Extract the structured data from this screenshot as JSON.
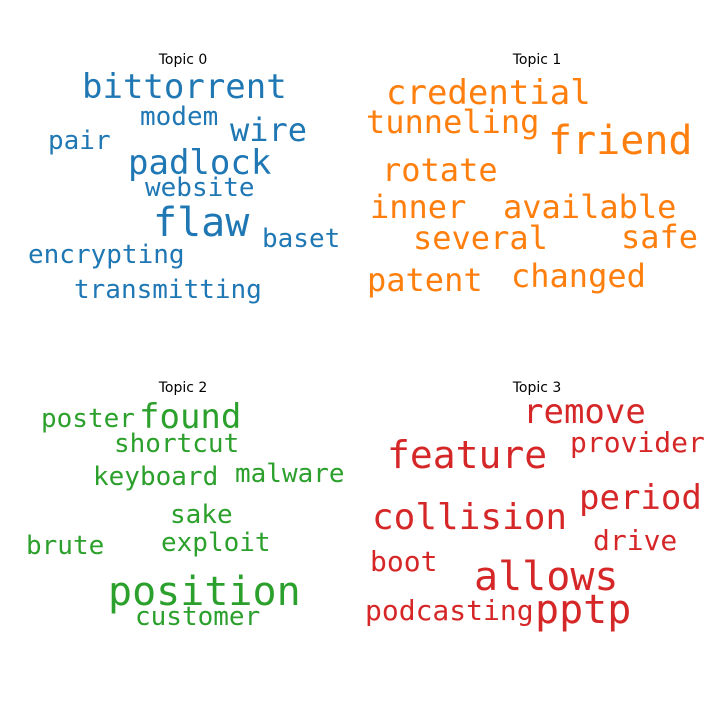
{
  "chart_data": {
    "type": "wordcloud",
    "panels": [
      {
        "title": "Topic 0",
        "color": "#1f77b4",
        "words": [
          "bittorrent",
          "modem",
          "wire",
          "pair",
          "padlock",
          "website",
          "flaw",
          "baset",
          "encrypting",
          "transmitting"
        ]
      },
      {
        "title": "Topic 1",
        "color": "#ff7f0e",
        "words": [
          "credential",
          "tunneling",
          "friend",
          "rotate",
          "inner",
          "available",
          "several",
          "safe",
          "patent",
          "changed"
        ]
      },
      {
        "title": "Topic 2",
        "color": "#2ca02c",
        "words": [
          "poster",
          "found",
          "shortcut",
          "keyboard",
          "malware",
          "sake",
          "exploit",
          "brute",
          "position",
          "customer"
        ]
      },
      {
        "title": "Topic 3",
        "color": "#d62728",
        "words": [
          "remove",
          "feature",
          "provider",
          "period",
          "collision",
          "drive",
          "boot",
          "allows",
          "podcasting",
          "pptp"
        ]
      }
    ]
  }
}
